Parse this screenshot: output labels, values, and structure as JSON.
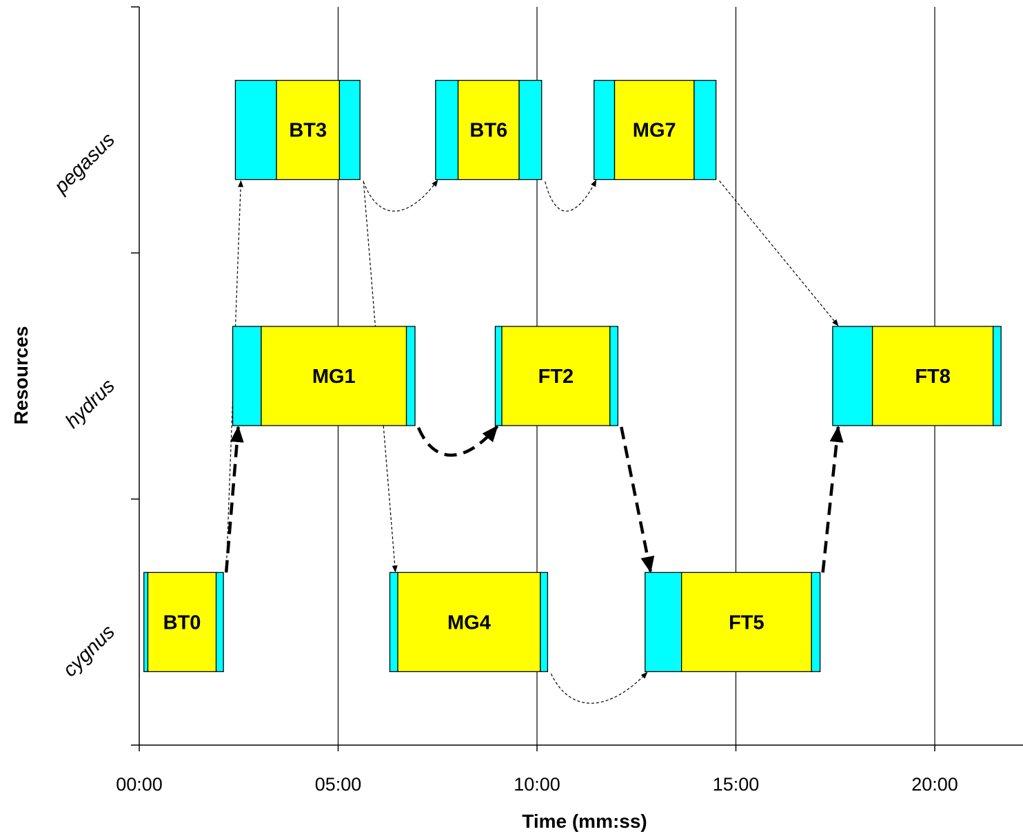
{
  "chart_data": {
    "type": "gantt",
    "xlabel": "Time (mm:ss)",
    "ylabel": "Resources",
    "xlim": [
      0,
      1320
    ],
    "x_ticks": [
      0,
      300,
      600,
      900,
      1200
    ],
    "x_tick_labels": [
      "00:00",
      "05:00",
      "10:00",
      "15:00",
      "20:00"
    ],
    "resources": [
      "cygnus",
      "hydrus",
      "pegasus"
    ],
    "grid": "vertical",
    "colors": {
      "overhead": "#00FFFF",
      "execution": "#FFFF00",
      "outline": "#000000"
    },
    "tasks": [
      {
        "id": "BT0",
        "resource": "cygnus",
        "segments": [
          [
            7,
            13,
            "overhead"
          ],
          [
            13,
            116,
            "execution"
          ],
          [
            116,
            127,
            "overhead"
          ]
        ]
      },
      {
        "id": "MG1",
        "resource": "hydrus",
        "segments": [
          [
            141,
            184,
            "overhead"
          ],
          [
            184,
            403,
            "execution"
          ],
          [
            403,
            416,
            "overhead"
          ]
        ]
      },
      {
        "id": "BT3",
        "resource": "pegasus",
        "segments": [
          [
            145,
            207,
            "overhead"
          ],
          [
            207,
            302,
            "execution"
          ],
          [
            302,
            333,
            "overhead"
          ]
        ]
      },
      {
        "id": "MG4",
        "resource": "cygnus",
        "segments": [
          [
            378,
            390,
            "overhead"
          ],
          [
            390,
            605,
            "execution"
          ],
          [
            605,
            616,
            "overhead"
          ]
        ]
      },
      {
        "id": "BT6",
        "resource": "pegasus",
        "segments": [
          [
            447,
            481,
            "overhead"
          ],
          [
            481,
            573,
            "execution"
          ],
          [
            573,
            607,
            "overhead"
          ]
        ]
      },
      {
        "id": "FT2",
        "resource": "hydrus",
        "segments": [
          [
            537,
            547,
            "overhead"
          ],
          [
            547,
            710,
            "execution"
          ],
          [
            710,
            722,
            "overhead"
          ]
        ]
      },
      {
        "id": "MG7",
        "resource": "pegasus",
        "segments": [
          [
            686,
            717,
            "overhead"
          ],
          [
            717,
            837,
            "execution"
          ],
          [
            837,
            870,
            "overhead"
          ]
        ]
      },
      {
        "id": "FT5",
        "resource": "cygnus",
        "segments": [
          [
            763,
            818,
            "overhead"
          ],
          [
            818,
            1014,
            "execution"
          ],
          [
            1014,
            1027,
            "overhead"
          ]
        ]
      },
      {
        "id": "FT8",
        "resource": "hydrus",
        "segments": [
          [
            1046,
            1106,
            "overhead"
          ],
          [
            1106,
            1288,
            "execution"
          ],
          [
            1288,
            1300,
            "overhead"
          ]
        ]
      }
    ],
    "dependencies": [
      {
        "from": "BT0",
        "to": "MG1",
        "style": "bold"
      },
      {
        "from": "MG1",
        "to": "FT2",
        "style": "bold"
      },
      {
        "from": "FT2",
        "to": "FT5",
        "style": "bold"
      },
      {
        "from": "FT5",
        "to": "FT8",
        "style": "bold"
      },
      {
        "from": "BT0",
        "to": "BT3",
        "style": "thin"
      },
      {
        "from": "BT3",
        "to": "MG4",
        "style": "thin"
      },
      {
        "from": "BT3",
        "to": "BT6",
        "style": "thin"
      },
      {
        "from": "BT6",
        "to": "MG7",
        "style": "thin"
      },
      {
        "from": "MG4",
        "to": "FT5",
        "style": "thin"
      },
      {
        "from": "MG7",
        "to": "FT8",
        "style": "thin"
      }
    ]
  }
}
